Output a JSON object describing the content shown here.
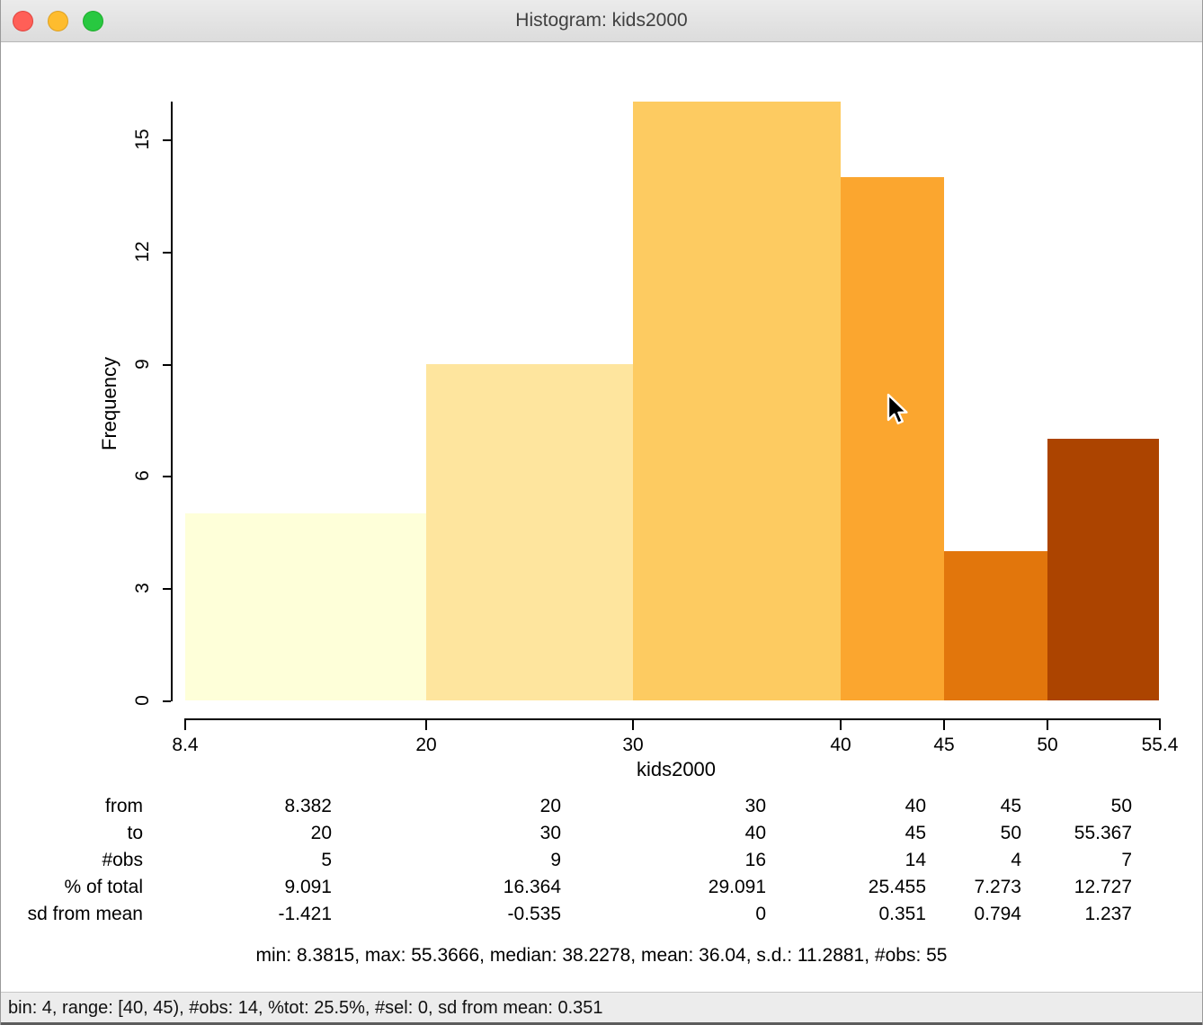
{
  "window": {
    "title": "Histogram: kids2000",
    "traffic_lights": {
      "close_color": "#FF5F57",
      "minimize_color": "#FEBC2E",
      "zoom_color": "#28C840"
    }
  },
  "chart_data": {
    "type": "bar",
    "subtype": "histogram",
    "title": "",
    "xlabel": "kids2000",
    "ylabel": "Frequency",
    "xlim": [
      8.4,
      55.4
    ],
    "ylim": [
      0,
      16
    ],
    "grid": false,
    "legend": "none",
    "x_ticks": [
      {
        "value": 8.4,
        "label": "8.4"
      },
      {
        "value": 20,
        "label": "20"
      },
      {
        "value": 30,
        "label": "30"
      },
      {
        "value": 40,
        "label": "40"
      },
      {
        "value": 45,
        "label": "45"
      },
      {
        "value": 50,
        "label": "50"
      },
      {
        "value": 55.4,
        "label": "55.4"
      }
    ],
    "y_ticks": [
      {
        "value": 0,
        "label": "0"
      },
      {
        "value": 3,
        "label": "3"
      },
      {
        "value": 6,
        "label": "6"
      },
      {
        "value": 9,
        "label": "9"
      },
      {
        "value": 12,
        "label": "12"
      },
      {
        "value": 15,
        "label": "15"
      }
    ],
    "bins": [
      {
        "from": 8.382,
        "to": 20,
        "from_label": "8.382",
        "to_label": "20",
        "obs": 5,
        "pct_of_total": "9.091",
        "sd_from_mean": "-1.421",
        "color": "#FEFFD9"
      },
      {
        "from": 20,
        "to": 30,
        "from_label": "20",
        "to_label": "30",
        "obs": 9,
        "pct_of_total": "16.364",
        "sd_from_mean": "-0.535",
        "color": "#FEE59E"
      },
      {
        "from": 30,
        "to": 40,
        "from_label": "30",
        "to_label": "40",
        "obs": 16,
        "pct_of_total": "29.091",
        "sd_from_mean": "0",
        "color": "#FDCB61"
      },
      {
        "from": 40,
        "to": 45,
        "from_label": "40",
        "to_label": "45",
        "obs": 14,
        "pct_of_total": "25.455",
        "sd_from_mean": "0.351",
        "color": "#FBA62F"
      },
      {
        "from": 45,
        "to": 50,
        "from_label": "45",
        "to_label": "50",
        "obs": 4,
        "pct_of_total": "7.273",
        "sd_from_mean": "0.794",
        "color": "#E2760C"
      },
      {
        "from": 50,
        "to": 55.367,
        "from_label": "50",
        "to_label": "55.367",
        "obs": 7,
        "pct_of_total": "12.727",
        "sd_from_mean": "1.237",
        "color": "#AC4400"
      }
    ]
  },
  "stats_table": {
    "rows": [
      {
        "label": "from",
        "key": "from_label"
      },
      {
        "label": "to",
        "key": "to_label"
      },
      {
        "label": "#obs",
        "key": "obs"
      },
      {
        "label": "% of total",
        "key": "pct_of_total"
      },
      {
        "label": "sd from mean",
        "key": "sd_from_mean"
      }
    ]
  },
  "summary": "min: 8.3815, max: 55.3666, median: 38.2278, mean: 36.04, s.d.: 11.2881, #obs: 55",
  "status_bar": "bin: 4, range: [40, 45), #obs: 14, %tot: 25.5%, #sel: 0, sd from mean: 0.351"
}
